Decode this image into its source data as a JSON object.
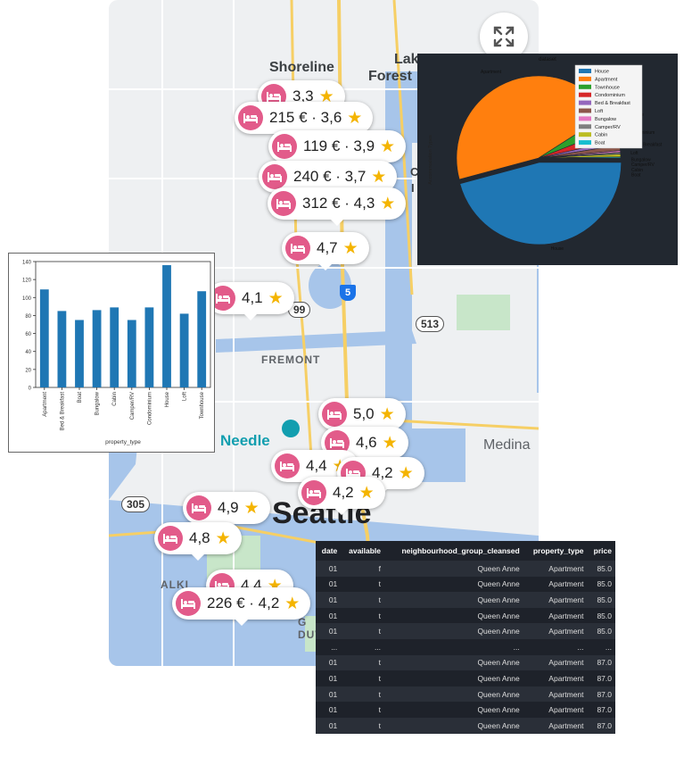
{
  "map": {
    "labels": {
      "shoreline": "Shoreline",
      "lake": "Lak",
      "forest": "Forest",
      "fremont": "FREMONT",
      "needle": "Needle",
      "medina": "Medina",
      "seattle": "Seattle",
      "alki": "ALKI",
      "c": "C",
      "i": "I",
      "g": "G",
      "duw": "DUW"
    },
    "shields": {
      "hwy99": "99",
      "hwy513": "513",
      "hwy305": "305",
      "i5": "5"
    },
    "pins": [
      {
        "label": "3,3"
      },
      {
        "label": "215 € · 3,6"
      },
      {
        "label": "119 € · 3,9"
      },
      {
        "label": "240 € · 3,7"
      },
      {
        "label": "312 € · 4,3"
      },
      {
        "label": "4,7"
      },
      {
        "label": "4,1"
      },
      {
        "label": "5,0"
      },
      {
        "label": "4,6"
      },
      {
        "label": "4,4"
      },
      {
        "label": "4,2"
      },
      {
        "label": "4,2"
      },
      {
        "label": "4,9"
      },
      {
        "label": "4,8"
      },
      {
        "label": "4,4"
      },
      {
        "label": "226 € · 4,2"
      }
    ],
    "star": "★"
  },
  "chart_data": [
    {
      "type": "bar",
      "categories": [
        "Apartment",
        "Bed & Breakfast",
        "Boat",
        "Bungalow",
        "Cabin",
        "Camper/RV",
        "Condominium",
        "House",
        "Loft",
        "Townhouse"
      ],
      "values": [
        109,
        85,
        75,
        86,
        89,
        75,
        89,
        136,
        82,
        107
      ],
      "xlabel": "property_type",
      "ylabel": "",
      "ylim": [
        0,
        140
      ],
      "yticks": [
        0,
        20,
        40,
        60,
        80,
        100,
        120,
        140
      ],
      "color": "#1f77b4"
    },
    {
      "type": "pie",
      "title": "dataset",
      "ylabel": "Accommodation Types",
      "labels": [
        "House",
        "Apartment",
        "Townhouse",
        "Condominium",
        "Bed & Breakfast",
        "Loft",
        "Bungalow",
        "Camper/RV",
        "Cabin",
        "Boat"
      ],
      "values": [
        1733,
        1708,
        118,
        91,
        37,
        40,
        13,
        13,
        21,
        8
      ],
      "colors": [
        "#1f77b4",
        "#ff7f0e",
        "#2ca02c",
        "#d62728",
        "#9467bd",
        "#8c564b",
        "#e377c2",
        "#7f7f7f",
        "#bcbd22",
        "#17becf"
      ],
      "legend_position": "upper-right"
    },
    {
      "type": "table",
      "columns": [
        "date",
        "available",
        "neighbourhood_group_cleansed",
        "property_type",
        "price"
      ],
      "rows": [
        [
          "01",
          "f",
          "Queen Anne",
          "Apartment",
          "85.0"
        ],
        [
          "01",
          "t",
          "Queen Anne",
          "Apartment",
          "85.0"
        ],
        [
          "01",
          "t",
          "Queen Anne",
          "Apartment",
          "85.0"
        ],
        [
          "01",
          "t",
          "Queen Anne",
          "Apartment",
          "85.0"
        ],
        [
          "01",
          "t",
          "Queen Anne",
          "Apartment",
          "85.0"
        ],
        [
          "...",
          "...",
          "...",
          "...",
          "..."
        ],
        [
          "01",
          "t",
          "Queen Anne",
          "Apartment",
          "87.0"
        ],
        [
          "01",
          "t",
          "Queen Anne",
          "Apartment",
          "87.0"
        ],
        [
          "01",
          "t",
          "Queen Anne",
          "Apartment",
          "87.0"
        ],
        [
          "01",
          "t",
          "Queen Anne",
          "Apartment",
          "87.0"
        ],
        [
          "01",
          "t",
          "Queen Anne",
          "Apartment",
          "87.0"
        ]
      ]
    }
  ]
}
